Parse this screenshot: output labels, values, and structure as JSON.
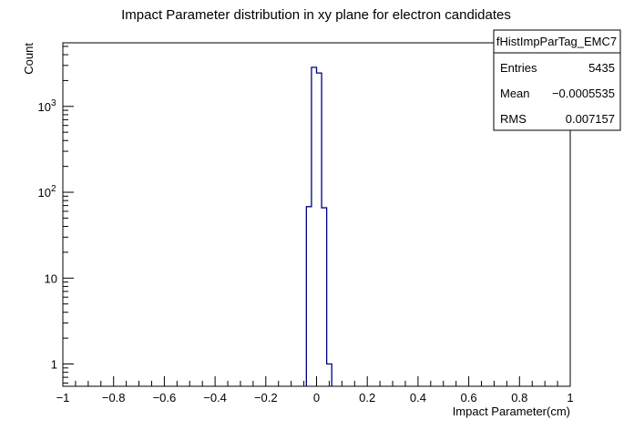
{
  "chart_data": {
    "type": "histogram",
    "title": "Impact Parameter distribution in xy plane for electron candidates",
    "xlabel": "Impact Parameter(cm)",
    "ylabel": "Count",
    "xlim": [
      -1,
      1
    ],
    "ylim": [
      0.55,
      5500
    ],
    "log_y": true,
    "x_ticks": [
      {
        "value": -1,
        "label": "−1"
      },
      {
        "value": -0.8,
        "label": "−0.8"
      },
      {
        "value": -0.6,
        "label": "−0.6"
      },
      {
        "value": -0.4,
        "label": "−0.4"
      },
      {
        "value": -0.2,
        "label": "−0.2"
      },
      {
        "value": 0,
        "label": "0"
      },
      {
        "value": 0.2,
        "label": "0.2"
      },
      {
        "value": 0.4,
        "label": "0.4"
      },
      {
        "value": 0.6,
        "label": "0.6"
      },
      {
        "value": 0.8,
        "label": "0.8"
      },
      {
        "value": 1,
        "label": "1"
      }
    ],
    "y_ticks": [
      {
        "value": 1,
        "label": "1"
      },
      {
        "value": 10,
        "label": "10"
      },
      {
        "value": 100,
        "label": "10",
        "exp": "2"
      },
      {
        "value": 1000,
        "label": "10",
        "exp": "3"
      }
    ],
    "bin_width": 0.02,
    "bins": [
      {
        "x_low": -0.04,
        "count": 68
      },
      {
        "x_low": -0.02,
        "count": 2850
      },
      {
        "x_low": 0.0,
        "count": 2450
      },
      {
        "x_low": 0.02,
        "count": 66
      },
      {
        "x_low": 0.04,
        "count": 1
      }
    ],
    "line_color": "#000080",
    "stats_box": {
      "name": "fHistImpParTag_EMC7",
      "rows": [
        {
          "label": "Entries",
          "value": "5435"
        },
        {
          "label": "Mean",
          "value": "−0.0005535"
        },
        {
          "label": "RMS",
          "value": "0.007157"
        }
      ]
    }
  }
}
